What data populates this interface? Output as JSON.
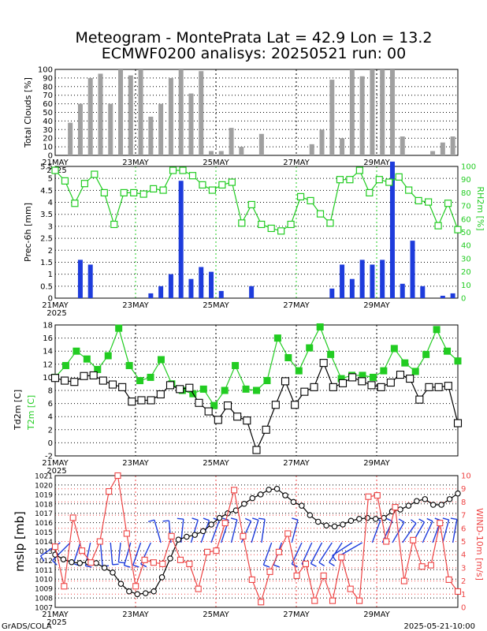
{
  "title_line1": "Meteogram - MontePrata Lat = 42.9 Lon = 13.2",
  "title_line2": "ECMWF0200 analisys: 20250521 run: 00",
  "footer_left": "GrADS/COLA",
  "footer_right": "2025-05-21-10:00",
  "colors": {
    "bars_gray": "#a0a0a0",
    "bars_blue": "#1e3cdc",
    "green": "#22cc22",
    "red": "#ee4444",
    "wind": "#1e3cdc",
    "black": "#000000"
  },
  "chart_data": [
    {
      "type": "bar",
      "ylabel": "Total Clouds [%]",
      "ylim": [
        0,
        100
      ],
      "yticks": [
        "0",
        "10",
        "20",
        "30",
        "40",
        "50",
        "60",
        "70",
        "80",
        "90",
        "100"
      ],
      "xticklabels": [
        "21MAY",
        "23MAY",
        "25MAY",
        "27MAY",
        "29MAY"
      ],
      "year_label": "2025",
      "x_steps": 40,
      "values": [
        0,
        38,
        60,
        90,
        95,
        60,
        100,
        93,
        100,
        45,
        60,
        90,
        100,
        72,
        98,
        5,
        5,
        32,
        10,
        0,
        25,
        0,
        0,
        0,
        0,
        13,
        30,
        88,
        20,
        100,
        92,
        100,
        100,
        100,
        22,
        0,
        0,
        5,
        15,
        22
      ]
    },
    {
      "type": "bar+line",
      "ylabel": "Prec-6h [mm]",
      "y2label": "RH2m [%]",
      "ylim": [
        0,
        5.5
      ],
      "y2lim": [
        0,
        100
      ],
      "yticks": [
        "0",
        "0.5",
        "1",
        "1.5",
        "2",
        "2.5",
        "3",
        "3.5",
        "4",
        "4.5",
        "5",
        "5.5"
      ],
      "y2ticks": [
        "0",
        "10",
        "20",
        "30",
        "40",
        "50",
        "60",
        "70",
        "80",
        "90",
        "100"
      ],
      "xticklabels": [
        "21MAY",
        "23MAY",
        "25MAY",
        "27MAY",
        "29MAY"
      ],
      "year_label": "2025",
      "series": [
        {
          "name": "Prec-6h",
          "values": [
            0,
            0,
            1.6,
            1.4,
            0,
            0,
            0,
            0,
            0,
            0.2,
            0.5,
            1.0,
            4.9,
            0.8,
            1.3,
            1.1,
            0.3,
            0,
            0,
            0.5,
            0,
            0,
            0,
            0,
            0,
            0,
            0,
            0.4,
            1.4,
            0.8,
            1.6,
            1.4,
            1.6,
            5.7,
            0.6,
            2.4,
            0.5,
            0,
            0.1,
            0.2
          ]
        },
        {
          "name": "RH2m",
          "values": [
            97,
            89,
            72,
            87,
            94,
            80,
            56,
            80,
            80,
            79,
            83,
            82,
            97,
            97,
            93,
            86,
            82,
            86,
            88,
            57,
            71,
            56,
            53,
            51,
            56,
            77,
            74,
            64,
            57,
            90,
            90,
            97,
            80,
            90,
            88,
            92,
            82,
            74,
            73,
            55,
            72,
            52
          ]
        }
      ]
    },
    {
      "type": "line",
      "ylabel": "Td2m [C]",
      "ylabel2": "T2m [C]",
      "ylim": [
        -2,
        18
      ],
      "yticks": [
        "-2",
        "0",
        "2",
        "4",
        "6",
        "8",
        "10",
        "12",
        "14",
        "16",
        "18"
      ],
      "xticklabels": [
        "21MAY",
        "23MAY",
        "25MAY",
        "27MAY",
        "29MAY"
      ],
      "year_label": "2025",
      "series": [
        {
          "name": "T2m",
          "values": [
            10,
            11.8,
            14,
            12.8,
            11.2,
            13.3,
            17.5,
            11.8,
            9.5,
            10,
            12.7,
            9,
            8,
            7.5,
            8.2,
            5.7,
            8,
            11.8,
            8.2,
            8,
            9.5,
            16,
            13,
            11,
            14.5,
            17.7,
            13.5,
            9.8,
            10.3,
            10.3,
            10,
            11,
            14.4,
            12.2,
            10.9,
            13.5,
            17.3,
            14,
            12.5
          ]
        },
        {
          "name": "Td2m",
          "values": [
            9.9,
            9.5,
            9.3,
            10.2,
            10.3,
            9.5,
            8.9,
            8.5,
            6.3,
            6.5,
            6.5,
            7.4,
            8.8,
            8.2,
            8.4,
            6.1,
            4.8,
            3.5,
            5.7,
            4,
            3.4,
            -1.1,
            2,
            5.8,
            9.4,
            5.8,
            7.8,
            8.5,
            12.2,
            8.5,
            9.1,
            10,
            9.4,
            8.8,
            8.5,
            9.2,
            10.4,
            9.8,
            6.6,
            8.5,
            8.5,
            8.7,
            3
          ]
        }
      ]
    },
    {
      "type": "line+wind",
      "ylabel": "mslp [mb]",
      "y2label": "WIND-10m [m/s]",
      "ylim": [
        1007,
        1021
      ],
      "y2lim": [
        0,
        10
      ],
      "yticks": [
        "1007",
        "1008",
        "1009",
        "1010",
        "1011",
        "1012",
        "1013",
        "1014",
        "1015",
        "1016",
        "1017",
        "1018",
        "1019",
        "1020",
        "1021"
      ],
      "y2ticks": [
        "0",
        "1",
        "2",
        "3",
        "4",
        "5",
        "6",
        "7",
        "8",
        "9",
        "10"
      ],
      "xticklabels": [
        "21MAY",
        "23MAY",
        "25MAY",
        "27MAY",
        "29MAY"
      ],
      "year_label": "2025",
      "series": [
        {
          "name": "mslp",
          "values": [
            1012.6,
            1012.1,
            1011.8,
            1011.7,
            1011.8,
            1011.7,
            1011.2,
            1010.7,
            1009.5,
            1008.7,
            1008.4,
            1008.5,
            1008.7,
            1010.2,
            1012.2,
            1014.2,
            1014.5,
            1014.7,
            1015.1,
            1015.8,
            1016.5,
            1017.0,
            1017.3,
            1018.0,
            1018.6,
            1019.0,
            1019.5,
            1019.6,
            1018.9,
            1018.2,
            1017.8,
            1016.8,
            1016.1,
            1015.7,
            1015.6,
            1015.8,
            1016.2,
            1016.4,
            1016.5,
            1016.4,
            1016.5,
            1017.2,
            1017.4,
            1017.8,
            1018.3,
            1018.5,
            1017.9,
            1017.9,
            1018.5,
            1019.1
          ]
        },
        {
          "name": "WIND-10m",
          "values": [
            4.6,
            1.6,
            6.8,
            4.3,
            3.4,
            5.0,
            8.8,
            10.0,
            5.6,
            1.6,
            3.6,
            3.4,
            3.3,
            5.4,
            3.6,
            3.3,
            1.4,
            4.2,
            4.3,
            6.4,
            8.9,
            5.4,
            2.1,
            0.4,
            2.7,
            4.2,
            5.6,
            2.4,
            3.3,
            0.5,
            2.4,
            0.5,
            3.8,
            1.4,
            0.5,
            8.4,
            8.5,
            5.0,
            7.6,
            2.0,
            5.1,
            3.1,
            3.2,
            6.4,
            2.1,
            1.2
          ]
        }
      ],
      "wind_barbs": [
        {
          "dir": 236,
          "len": 30
        },
        {
          "dir": 225,
          "len": 32
        },
        {
          "dir": 198,
          "len": 28
        },
        {
          "dir": 192,
          "len": 30
        },
        {
          "dir": 175,
          "len": 30
        },
        {
          "dir": 175,
          "len": 28
        },
        {
          "dir": 186,
          "len": 25
        },
        {
          "dir": 196,
          "len": 30
        },
        {
          "dir": 199,
          "len": 30
        },
        {
          "dir": 205,
          "len": 30
        },
        {
          "dir": 344,
          "len": 30
        },
        {
          "dir": 355,
          "len": 28
        },
        {
          "dir": 6,
          "len": 30
        },
        {
          "dir": 17,
          "len": 30
        },
        {
          "dir": 20,
          "len": 30
        },
        {
          "dir": 20,
          "len": 30
        },
        {
          "dir": 18,
          "len": 30
        },
        {
          "dir": 14,
          "len": 30
        },
        {
          "dir": 24,
          "len": 30
        },
        {
          "dir": 17,
          "len": 30
        },
        {
          "dir": 8,
          "len": 30
        },
        {
          "dir": 200,
          "len": 30
        },
        {
          "dir": 200,
          "len": 30
        },
        {
          "dir": 15,
          "len": 30
        },
        {
          "dir": 205,
          "len": 30
        },
        {
          "dir": 205,
          "len": 30
        },
        {
          "dir": 208,
          "len": 30
        },
        {
          "dir": 213,
          "len": 30
        },
        {
          "dir": 213,
          "len": 30
        },
        {
          "dir": 237,
          "len": 30
        },
        {
          "dir": 240,
          "len": 32
        },
        {
          "dir": 20,
          "len": 30
        },
        {
          "dir": 25,
          "len": 30
        },
        {
          "dir": 30,
          "len": 30
        },
        {
          "dir": 35,
          "len": 30
        },
        {
          "dir": 30,
          "len": 30
        },
        {
          "dir": 25,
          "len": 30
        },
        {
          "dir": 20,
          "len": 30
        },
        {
          "dir": 15,
          "len": 30
        },
        {
          "dir": 10,
          "len": 30
        }
      ]
    }
  ]
}
